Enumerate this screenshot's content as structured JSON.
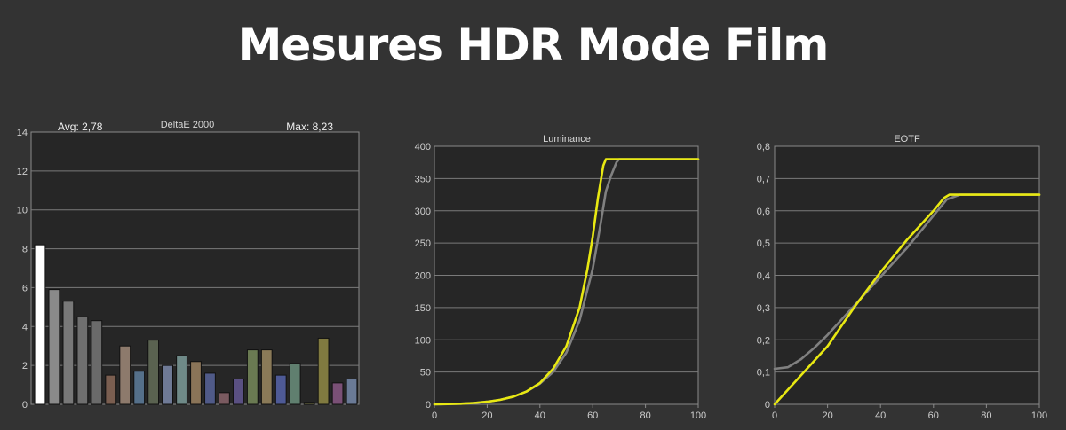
{
  "title": "Mesures HDR Mode Film",
  "chart_data": [
    {
      "type": "bar",
      "title": "DeltaE 2000",
      "avg_label": "Avg: 2,78",
      "max_label": "Max: 8,23",
      "ylim": [
        0,
        14
      ],
      "yticks": [
        "0",
        "2",
        "4",
        "6",
        "8",
        "10",
        "12",
        "14"
      ],
      "grid": true,
      "values": [
        8.2,
        5.9,
        5.3,
        4.5,
        4.3,
        1.5,
        3.0,
        1.7,
        3.3,
        2.0,
        2.5,
        2.2,
        1.6,
        0.6,
        1.3,
        2.8,
        2.8,
        1.5,
        2.1,
        0.1,
        3.4,
        1.1,
        1.3
      ],
      "colors": [
        "#ffffff",
        "#8a8a8a",
        "#787878",
        "#6f6f6f",
        "#6a6a6a",
        "#7a5e50",
        "#8d7a6c",
        "#55708a",
        "#5a6250",
        "#6f7a96",
        "#6f8a88",
        "#8a7458",
        "#505a88",
        "#7a5a60",
        "#5a5082",
        "#6a7a52",
        "#8a7a58",
        "#4e5a96",
        "#607f6f",
        "#7a7a4a",
        "#807a40",
        "#7a5076",
        "#6a7a96"
      ]
    },
    {
      "type": "line",
      "title": "Luminance",
      "xlim": [
        0,
        100
      ],
      "ylim": [
        0,
        400
      ],
      "xticks": [
        "0",
        "20",
        "40",
        "60",
        "80",
        "100"
      ],
      "yticks": [
        "0",
        "50",
        "100",
        "150",
        "200",
        "250",
        "300",
        "350",
        "400"
      ],
      "grid": true,
      "series": [
        {
          "color": "#808080",
          "x": [
            0,
            5,
            10,
            15,
            20,
            25,
            30,
            35,
            40,
            45,
            50,
            55,
            60,
            63,
            65,
            67,
            69,
            70,
            75,
            80,
            85,
            90,
            95,
            100
          ],
          "y": [
            0,
            0.4,
            1,
            2,
            4,
            7,
            12,
            20,
            32,
            50,
            80,
            130,
            210,
            280,
            330,
            355,
            375,
            380,
            380,
            380,
            380,
            380,
            380,
            380
          ]
        },
        {
          "color": "#e8e812",
          "x": [
            0,
            5,
            10,
            15,
            20,
            25,
            30,
            35,
            40,
            45,
            50,
            55,
            58,
            60,
            62,
            64,
            65,
            66,
            70,
            75,
            80,
            85,
            90,
            95,
            100
          ],
          "y": [
            0,
            0.4,
            1,
            2,
            4,
            7,
            12,
            20,
            33,
            55,
            90,
            150,
            210,
            260,
            320,
            370,
            380,
            380,
            380,
            380,
            380,
            380,
            380,
            380,
            380
          ]
        }
      ]
    },
    {
      "type": "line",
      "title": "EOTF",
      "xlim": [
        0,
        100
      ],
      "ylim": [
        0,
        0.8
      ],
      "xticks": [
        "0",
        "20",
        "40",
        "60",
        "80",
        "100"
      ],
      "yticks": [
        "0",
        "0,1",
        "0,2",
        "0,3",
        "0,4",
        "0,5",
        "0,6",
        "0,7",
        "0,8"
      ],
      "grid": true,
      "series": [
        {
          "color": "#808080",
          "x": [
            0,
            5,
            10,
            15,
            20,
            30,
            40,
            50,
            60,
            65,
            70,
            75,
            80,
            90,
            100
          ],
          "y": [
            0.11,
            0.115,
            0.14,
            0.175,
            0.215,
            0.305,
            0.395,
            0.485,
            0.585,
            0.635,
            0.65,
            0.65,
            0.65,
            0.65,
            0.65
          ]
        },
        {
          "color": "#e8e812",
          "x": [
            0,
            5,
            10,
            15,
            20,
            30,
            40,
            50,
            60,
            64,
            66,
            70,
            80,
            90,
            100
          ],
          "y": [
            0,
            0.045,
            0.09,
            0.135,
            0.18,
            0.3,
            0.41,
            0.51,
            0.6,
            0.64,
            0.65,
            0.65,
            0.65,
            0.65,
            0.65
          ]
        }
      ]
    }
  ]
}
